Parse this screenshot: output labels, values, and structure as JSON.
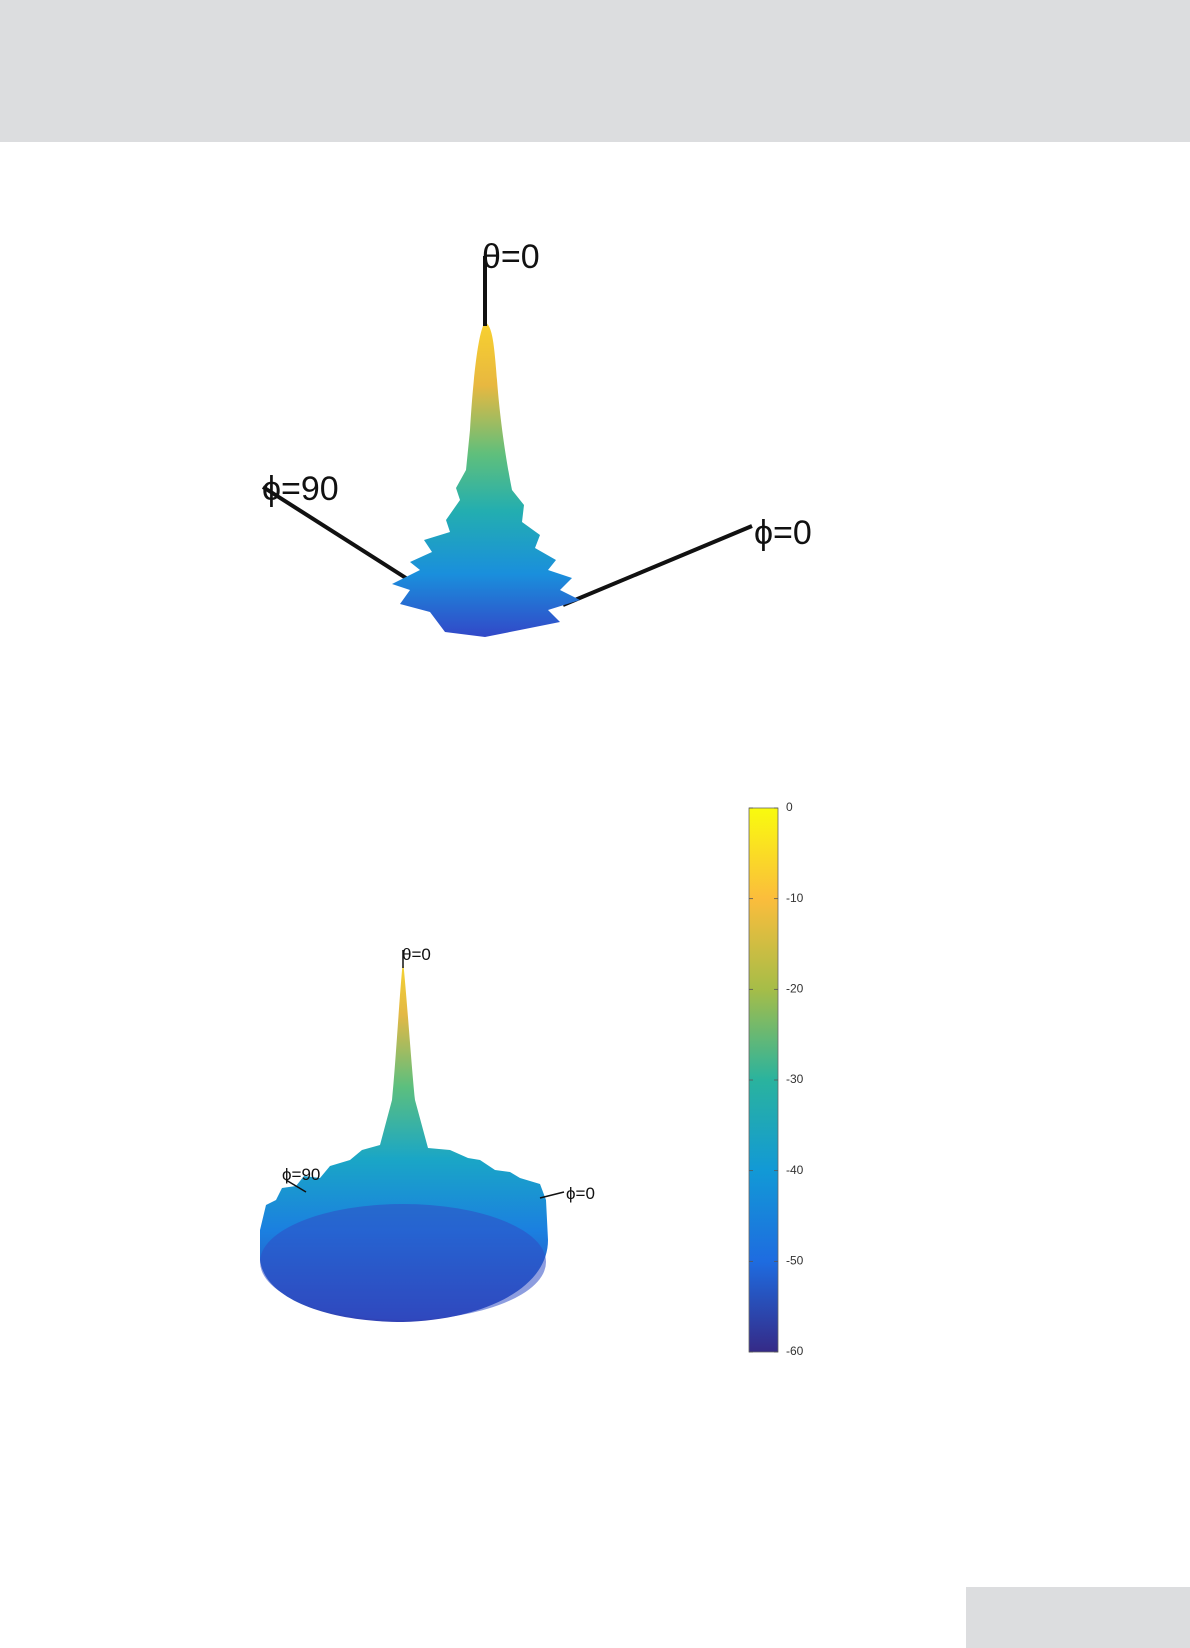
{
  "figures": [
    {
      "labels": {
        "theta0": "θ=0",
        "phi90": "ϕ=90",
        "phi0": "ϕ=0"
      }
    },
    {
      "labels": {
        "theta0": "θ=0",
        "phi90": "ϕ=90",
        "phi0": "ϕ=0"
      },
      "colorbar": {
        "clim": [
          -60,
          0
        ],
        "ticks": [
          0,
          -10,
          -20,
          -30,
          -40,
          -50,
          -60
        ]
      }
    }
  ]
}
